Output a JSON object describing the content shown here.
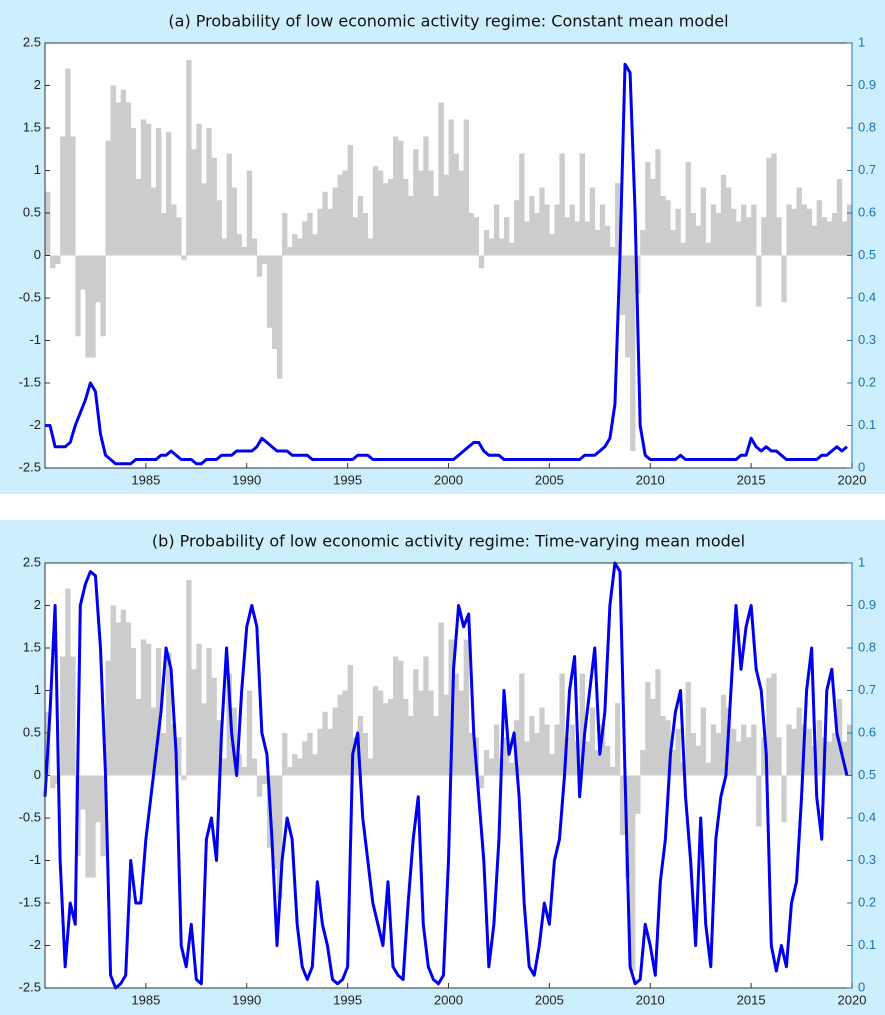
{
  "chart_data": [
    {
      "type": "combo",
      "title": "(a) Probability of low economic activity regime: Constant mean model",
      "x": [
        1980,
        1980.25,
        1980.5,
        1980.75,
        1981,
        1981.25,
        1981.5,
        1981.75,
        1982,
        1982.25,
        1982.5,
        1982.75,
        1983,
        1983.25,
        1983.5,
        1983.75,
        1984,
        1984.25,
        1984.5,
        1984.75,
        1985,
        1985.25,
        1985.5,
        1985.75,
        1986,
        1986.25,
        1986.5,
        1986.75,
        1987,
        1987.25,
        1987.5,
        1987.75,
        1988,
        1988.25,
        1988.5,
        1988.75,
        1989,
        1989.25,
        1989.5,
        1989.75,
        1990,
        1990.25,
        1990.5,
        1990.75,
        1991,
        1991.25,
        1991.5,
        1991.75,
        1992,
        1992.25,
        1992.5,
        1992.75,
        1993,
        1993.25,
        1993.5,
        1993.75,
        1994,
        1994.25,
        1994.5,
        1994.75,
        1995,
        1995.25,
        1995.5,
        1995.75,
        1996,
        1996.25,
        1996.5,
        1996.75,
        1997,
        1997.25,
        1997.5,
        1997.75,
        1998,
        1998.25,
        1998.5,
        1998.75,
        1999,
        1999.25,
        1999.5,
        1999.75,
        2000,
        2000.25,
        2000.5,
        2000.75,
        2001,
        2001.25,
        2001.5,
        2001.75,
        2002,
        2002.25,
        2002.5,
        2002.75,
        2003,
        2003.25,
        2003.5,
        2003.75,
        2004,
        2004.25,
        2004.5,
        2004.75,
        2005,
        2005.25,
        2005.5,
        2005.75,
        2006,
        2006.25,
        2006.5,
        2006.75,
        2007,
        2007.25,
        2007.5,
        2007.75,
        2008,
        2008.25,
        2008.5,
        2008.75,
        2009,
        2009.25,
        2009.5,
        2009.75,
        2010,
        2010.25,
        2010.5,
        2010.75,
        2011,
        2011.25,
        2011.5,
        2011.75,
        2012,
        2012.25,
        2012.5,
        2012.75,
        2013,
        2013.25,
        2013.5,
        2013.75,
        2014,
        2014.25,
        2014.5,
        2014.75,
        2015,
        2015.25,
        2015.5,
        2015.75,
        2016,
        2016.25,
        2016.5,
        2016.75,
        2017,
        2017.25,
        2017.5,
        2017.75,
        2018,
        2018.25,
        2018.5,
        2018.75,
        2019,
        2019.25,
        2019.5,
        2019.75
      ],
      "xlim": [
        1980,
        2020
      ],
      "xticks": [
        1985,
        1990,
        1995,
        2000,
        2005,
        2010,
        2015,
        2020
      ],
      "ylim": [
        -2.5,
        2.5
      ],
      "yticks": [
        -2.5,
        -2,
        -1.5,
        -1,
        -0.5,
        0,
        0.5,
        1,
        1.5,
        2,
        2.5
      ],
      "y2lim": [
        0,
        1
      ],
      "y2ticks": [
        0,
        0.1,
        0.2,
        0.3,
        0.4,
        0.5,
        0.6,
        0.7,
        0.8,
        0.9,
        1
      ],
      "y2_color": "#1874b6",
      "series": [
        {
          "type": "bar",
          "color": "#cccccc",
          "values": [
            0.75,
            -0.15,
            -0.1,
            1.4,
            2.2,
            1.4,
            -0.95,
            -0.4,
            -1.2,
            -1.2,
            -0.55,
            -0.95,
            1.35,
            2.0,
            1.8,
            1.95,
            1.8,
            1.5,
            0.9,
            1.6,
            1.55,
            0.8,
            1.5,
            0.5,
            1.45,
            0.6,
            0.45,
            -0.05,
            2.3,
            1.25,
            1.55,
            0.85,
            1.5,
            1.15,
            0.65,
            0.2,
            1.2,
            0.8,
            0.25,
            0.1,
            1.0,
            0.2,
            -0.25,
            -0.1,
            -0.85,
            -1.1,
            -1.45,
            0.5,
            0.1,
            0.25,
            0.2,
            0.4,
            0.5,
            0.25,
            0.55,
            0.75,
            0.55,
            0.8,
            0.95,
            1.0,
            1.3,
            0.45,
            0.7,
            0.5,
            0.2,
            1.05,
            1.0,
            0.85,
            0.9,
            1.4,
            1.35,
            0.9,
            0.7,
            1.25,
            1.0,
            1.4,
            1.0,
            0.7,
            1.8,
            0.95,
            1.6,
            1.2,
            1.0,
            1.6,
            0.5,
            0.45,
            -0.15,
            0.3,
            0.2,
            0.6,
            0.2,
            0.45,
            0.15,
            0.65,
            1.2,
            0.4,
            0.7,
            0.5,
            0.8,
            0.6,
            0.25,
            0.6,
            1.2,
            0.45,
            0.6,
            0.4,
            1.2,
            0.4,
            0.8,
            0.3,
            0.6,
            0.35,
            0.1,
            0.85,
            -0.7,
            -1.2,
            -2.3,
            -0.45,
            0.3,
            1.1,
            0.9,
            1.25,
            0.7,
            0.65,
            0.3,
            0.55,
            0.15,
            1.1,
            0.5,
            0.35,
            0.8,
            0.15,
            0.6,
            0.5,
            0.95,
            0.8,
            0.55,
            0.4,
            0.6,
            0.45,
            0.6,
            -0.6,
            0.45,
            1.15,
            1.2,
            0.45,
            -0.55,
            0.6,
            0.55,
            0.8,
            0.6,
            0.55,
            0.35,
            0.65,
            0.45,
            0.4,
            0.5,
            0.9,
            0.4,
            0.6
          ]
        },
        {
          "type": "line",
          "axis": "y2",
          "color": "#0000ee",
          "values": [
            0.1,
            0.1,
            0.05,
            0.05,
            0.05,
            0.06,
            0.1,
            0.13,
            0.16,
            0.2,
            0.18,
            0.08,
            0.03,
            0.02,
            0.01,
            0.01,
            0.01,
            0.01,
            0.02,
            0.02,
            0.02,
            0.02,
            0.02,
            0.03,
            0.03,
            0.04,
            0.03,
            0.02,
            0.02,
            0.02,
            0.01,
            0.01,
            0.02,
            0.02,
            0.02,
            0.03,
            0.03,
            0.03,
            0.04,
            0.04,
            0.04,
            0.04,
            0.05,
            0.07,
            0.06,
            0.05,
            0.04,
            0.04,
            0.04,
            0.03,
            0.03,
            0.03,
            0.03,
            0.02,
            0.02,
            0.02,
            0.02,
            0.02,
            0.02,
            0.02,
            0.02,
            0.02,
            0.03,
            0.03,
            0.03,
            0.02,
            0.02,
            0.02,
            0.02,
            0.02,
            0.02,
            0.02,
            0.02,
            0.02,
            0.02,
            0.02,
            0.02,
            0.02,
            0.02,
            0.02,
            0.02,
            0.02,
            0.03,
            0.04,
            0.05,
            0.06,
            0.06,
            0.04,
            0.03,
            0.03,
            0.03,
            0.02,
            0.02,
            0.02,
            0.02,
            0.02,
            0.02,
            0.02,
            0.02,
            0.02,
            0.02,
            0.02,
            0.02,
            0.02,
            0.02,
            0.02,
            0.02,
            0.03,
            0.03,
            0.03,
            0.04,
            0.05,
            0.07,
            0.15,
            0.5,
            0.95,
            0.93,
            0.6,
            0.1,
            0.03,
            0.02,
            0.02,
            0.02,
            0.02,
            0.02,
            0.02,
            0.03,
            0.02,
            0.02,
            0.02,
            0.02,
            0.02,
            0.02,
            0.02,
            0.02,
            0.02,
            0.02,
            0.02,
            0.03,
            0.03,
            0.07,
            0.05,
            0.04,
            0.05,
            0.04,
            0.04,
            0.03,
            0.02,
            0.02,
            0.02,
            0.02,
            0.02,
            0.02,
            0.02,
            0.03,
            0.03,
            0.04,
            0.05,
            0.04,
            0.05
          ]
        }
      ]
    },
    {
      "type": "combo",
      "title": "(b) Probability of low economic activity regime: Time-varying mean model",
      "x": [
        1980,
        1980.25,
        1980.5,
        1980.75,
        1981,
        1981.25,
        1981.5,
        1981.75,
        1982,
        1982.25,
        1982.5,
        1982.75,
        1983,
        1983.25,
        1983.5,
        1983.75,
        1984,
        1984.25,
        1984.5,
        1984.75,
        1985,
        1985.25,
        1985.5,
        1985.75,
        1986,
        1986.25,
        1986.5,
        1986.75,
        1987,
        1987.25,
        1987.5,
        1987.75,
        1988,
        1988.25,
        1988.5,
        1988.75,
        1989,
        1989.25,
        1989.5,
        1989.75,
        1990,
        1990.25,
        1990.5,
        1990.75,
        1991,
        1991.25,
        1991.5,
        1991.75,
        1992,
        1992.25,
        1992.5,
        1992.75,
        1993,
        1993.25,
        1993.5,
        1993.75,
        1994,
        1994.25,
        1994.5,
        1994.75,
        1995,
        1995.25,
        1995.5,
        1995.75,
        1996,
        1996.25,
        1996.5,
        1996.75,
        1997,
        1997.25,
        1997.5,
        1997.75,
        1998,
        1998.25,
        1998.5,
        1998.75,
        1999,
        1999.25,
        1999.5,
        1999.75,
        2000,
        2000.25,
        2000.5,
        2000.75,
        2001,
        2001.25,
        2001.5,
        2001.75,
        2002,
        2002.25,
        2002.5,
        2002.75,
        2003,
        2003.25,
        2003.5,
        2003.75,
        2004,
        2004.25,
        2004.5,
        2004.75,
        2005,
        2005.25,
        2005.5,
        2005.75,
        2006,
        2006.25,
        2006.5,
        2006.75,
        2007,
        2007.25,
        2007.5,
        2007.75,
        2008,
        2008.25,
        2008.5,
        2008.75,
        2009,
        2009.25,
        2009.5,
        2009.75,
        2010,
        2010.25,
        2010.5,
        2010.75,
        2011,
        2011.25,
        2011.5,
        2011.75,
        2012,
        2012.25,
        2012.5,
        2012.75,
        2013,
        2013.25,
        2013.5,
        2013.75,
        2014,
        2014.25,
        2014.5,
        2014.75,
        2015,
        2015.25,
        2015.5,
        2015.75,
        2016,
        2016.25,
        2016.5,
        2016.75,
        2017,
        2017.25,
        2017.5,
        2017.75,
        2018,
        2018.25,
        2018.5,
        2018.75,
        2019,
        2019.25,
        2019.5,
        2019.75
      ],
      "xlim": [
        1980,
        2020
      ],
      "xticks": [
        1985,
        1990,
        1995,
        2000,
        2005,
        2010,
        2015,
        2020
      ],
      "ylim": [
        -2.5,
        2.5
      ],
      "yticks": [
        -2.5,
        -2,
        -1.5,
        -1,
        -0.5,
        0,
        0.5,
        1,
        1.5,
        2,
        2.5
      ],
      "y2lim": [
        0,
        1
      ],
      "y2ticks": [
        0,
        0.1,
        0.2,
        0.3,
        0.4,
        0.5,
        0.6,
        0.7,
        0.8,
        0.9,
        1
      ],
      "y2_color": "#1874b6",
      "series": [
        {
          "type": "bar",
          "color": "#cccccc",
          "values": [
            0.75,
            -0.15,
            -0.1,
            1.4,
            2.2,
            1.4,
            -0.95,
            -0.4,
            -1.2,
            -1.2,
            -0.55,
            -0.95,
            1.35,
            2.0,
            1.8,
            1.95,
            1.8,
            1.5,
            0.9,
            1.6,
            1.55,
            0.8,
            1.5,
            0.5,
            1.45,
            0.6,
            0.45,
            -0.05,
            2.3,
            1.25,
            1.55,
            0.85,
            1.5,
            1.15,
            0.65,
            0.2,
            1.2,
            0.8,
            0.25,
            0.1,
            1.0,
            0.2,
            -0.25,
            -0.1,
            -0.85,
            -1.1,
            -1.45,
            0.5,
            0.1,
            0.25,
            0.2,
            0.4,
            0.5,
            0.25,
            0.55,
            0.75,
            0.55,
            0.8,
            0.95,
            1.0,
            1.3,
            0.45,
            0.7,
            0.5,
            0.2,
            1.05,
            1.0,
            0.85,
            0.9,
            1.4,
            1.35,
            0.9,
            0.7,
            1.25,
            1.0,
            1.4,
            1.0,
            0.7,
            1.8,
            0.95,
            1.6,
            1.2,
            1.0,
            1.6,
            0.5,
            0.45,
            -0.15,
            0.3,
            0.2,
            0.6,
            0.2,
            0.45,
            0.15,
            0.65,
            1.2,
            0.4,
            0.7,
            0.5,
            0.8,
            0.6,
            0.25,
            0.6,
            1.2,
            0.45,
            0.6,
            0.4,
            1.2,
            0.4,
            0.8,
            0.3,
            0.6,
            0.35,
            0.1,
            0.85,
            -0.7,
            -1.2,
            -2.3,
            -0.45,
            0.3,
            1.1,
            0.9,
            1.25,
            0.7,
            0.65,
            0.3,
            0.55,
            0.15,
            1.1,
            0.5,
            0.35,
            0.8,
            0.15,
            0.6,
            0.5,
            0.95,
            0.8,
            0.55,
            0.4,
            0.6,
            0.45,
            0.6,
            -0.6,
            0.45,
            1.15,
            1.2,
            0.45,
            -0.55,
            0.6,
            0.55,
            0.8,
            0.6,
            0.55,
            0.35,
            0.65,
            0.45,
            0.4,
            0.5,
            0.9,
            0.4,
            0.6
          ]
        },
        {
          "type": "line",
          "axis": "y2",
          "color": "#0000ee",
          "values": [
            0.45,
            0.65,
            0.9,
            0.3,
            0.05,
            0.2,
            0.15,
            0.9,
            0.95,
            0.98,
            0.97,
            0.8,
            0.5,
            0.03,
            0.0,
            0.01,
            0.03,
            0.3,
            0.2,
            0.2,
            0.35,
            0.45,
            0.55,
            0.65,
            0.8,
            0.75,
            0.55,
            0.1,
            0.05,
            0.15,
            0.02,
            0.01,
            0.35,
            0.4,
            0.3,
            0.6,
            0.8,
            0.6,
            0.5,
            0.7,
            0.85,
            0.9,
            0.85,
            0.6,
            0.55,
            0.35,
            0.1,
            0.3,
            0.4,
            0.35,
            0.15,
            0.05,
            0.02,
            0.05,
            0.25,
            0.15,
            0.1,
            0.02,
            0.01,
            0.02,
            0.05,
            0.55,
            0.6,
            0.4,
            0.3,
            0.2,
            0.15,
            0.1,
            0.25,
            0.05,
            0.03,
            0.02,
            0.2,
            0.35,
            0.45,
            0.15,
            0.05,
            0.02,
            0.01,
            0.03,
            0.3,
            0.75,
            0.9,
            0.85,
            0.88,
            0.6,
            0.45,
            0.3,
            0.05,
            0.15,
            0.35,
            0.7,
            0.55,
            0.6,
            0.45,
            0.2,
            0.05,
            0.03,
            0.1,
            0.2,
            0.15,
            0.3,
            0.35,
            0.5,
            0.7,
            0.78,
            0.45,
            0.6,
            0.7,
            0.8,
            0.55,
            0.65,
            0.9,
            1.0,
            0.98,
            0.5,
            0.05,
            0.01,
            0.02,
            0.15,
            0.1,
            0.03,
            0.25,
            0.35,
            0.55,
            0.65,
            0.7,
            0.45,
            0.3,
            0.1,
            0.4,
            0.15,
            0.05,
            0.35,
            0.45,
            0.5,
            0.7,
            0.9,
            0.75,
            0.85,
            0.9,
            0.75,
            0.7,
            0.55,
            0.1,
            0.04,
            0.1,
            0.05,
            0.2,
            0.25,
            0.45,
            0.7,
            0.8,
            0.45,
            0.35,
            0.7,
            0.75,
            0.6,
            0.55,
            0.5
          ]
        }
      ]
    }
  ]
}
